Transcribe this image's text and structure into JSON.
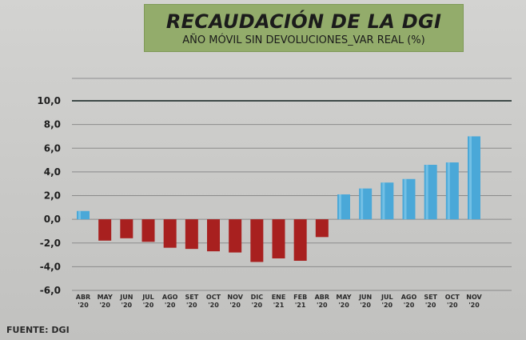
{
  "chart_data": {
    "type": "bar",
    "title": "RECAUDACIÓN DE LA DGI",
    "subtitle": "AÑO MÓVIL SIN DEVOLUCIONES_VAR REAL (%)",
    "source": "FUENTE: DGI",
    "categories": [
      [
        "ABR",
        "'20"
      ],
      [
        "MAY",
        "'20"
      ],
      [
        "JUN",
        "'20"
      ],
      [
        "JUL",
        "'20"
      ],
      [
        "AGO",
        "'20"
      ],
      [
        "SET",
        "'20"
      ],
      [
        "OCT",
        "'20"
      ],
      [
        "NOV",
        "'20"
      ],
      [
        "DIC",
        "'20"
      ],
      [
        "ENE",
        "'21"
      ],
      [
        "FEB",
        "'21"
      ],
      [
        "ABR",
        "'20"
      ],
      [
        "MAY",
        "'20"
      ],
      [
        "JUN",
        "'20"
      ],
      [
        "JUL",
        "'20"
      ],
      [
        "AGO",
        "'20"
      ],
      [
        "SET",
        "'20"
      ],
      [
        "OCT",
        "'20"
      ],
      [
        "NOV",
        "'20"
      ]
    ],
    "values": [
      0.7,
      -1.8,
      -1.6,
      -1.9,
      -2.4,
      -2.5,
      -2.7,
      -2.8,
      -3.6,
      -3.3,
      -3.5,
      -1.5,
      2.1,
      2.6,
      3.1,
      3.4,
      4.6,
      4.8,
      7.0
    ],
    "bar_colors": [
      "#4aa8d8",
      "#a8201f",
      "#a8201f",
      "#a8201f",
      "#a8201f",
      "#a8201f",
      "#a8201f",
      "#a8201f",
      "#a8201f",
      "#a8201f",
      "#a8201f",
      "#a8201f",
      "#4aa8d8",
      "#4aa8d8",
      "#4aa8d8",
      "#4aa8d8",
      "#4aa8d8",
      "#4aa8d8",
      "#4aa8d8"
    ],
    "y_ticks": [
      "10,0",
      "8,0",
      "6,0",
      "4,0",
      "2,0",
      "0,0",
      "-2,0",
      "-4,0",
      "-6,0"
    ],
    "y_tick_values": [
      10,
      8,
      6,
      4,
      2,
      0,
      -2,
      -4,
      -6
    ],
    "ylim": [
      -6,
      10
    ],
    "grid": true,
    "colors": {
      "negative": "#a8201f",
      "positive": "#4aa8d8",
      "title_box": "#93ac6b"
    }
  }
}
